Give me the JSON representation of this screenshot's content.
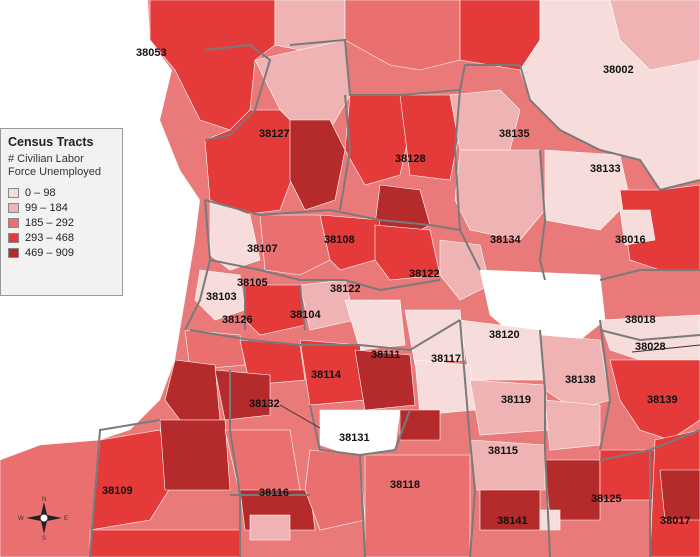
{
  "legend": {
    "title": "Census Tracts",
    "subtitle_line1": "# Civilian Labor",
    "subtitle_line2": "Force Unemployed",
    "classes": [
      {
        "label": "0 – 98",
        "color": "#f7dcdc"
      },
      {
        "label": "99 – 184",
        "color": "#f0b3b3"
      },
      {
        "label": "185 – 292",
        "color": "#ea7070"
      },
      {
        "label": "293 – 468",
        "color": "#e43a3a"
      },
      {
        "label": "469 – 909",
        "color": "#b52a2a"
      }
    ]
  },
  "compass": {
    "n": "N",
    "s": "S",
    "e": "E",
    "w": "W"
  },
  "zip_labels": [
    {
      "code": "38053"
    },
    {
      "code": "38002"
    },
    {
      "code": "38127"
    },
    {
      "code": "38135"
    },
    {
      "code": "38128"
    },
    {
      "code": "38133"
    },
    {
      "code": "38108"
    },
    {
      "code": "38134"
    },
    {
      "code": "38016"
    },
    {
      "code": "38107"
    },
    {
      "code": "38122"
    },
    {
      "code": "38105"
    },
    {
      "code": "38122"
    },
    {
      "code": "38103"
    },
    {
      "code": "38104"
    },
    {
      "code": "38126"
    },
    {
      "code": "38018"
    },
    {
      "code": "38120"
    },
    {
      "code": "38028"
    },
    {
      "code": "38111"
    },
    {
      "code": "38117"
    },
    {
      "code": "38114"
    },
    {
      "code": "38138"
    },
    {
      "code": "38132"
    },
    {
      "code": "38119"
    },
    {
      "code": "38139"
    },
    {
      "code": "38131"
    },
    {
      "code": "38115"
    },
    {
      "code": "38109"
    },
    {
      "code": "38118"
    },
    {
      "code": "38116"
    },
    {
      "code": "38125"
    },
    {
      "code": "38141"
    },
    {
      "code": "38017"
    }
  ]
}
